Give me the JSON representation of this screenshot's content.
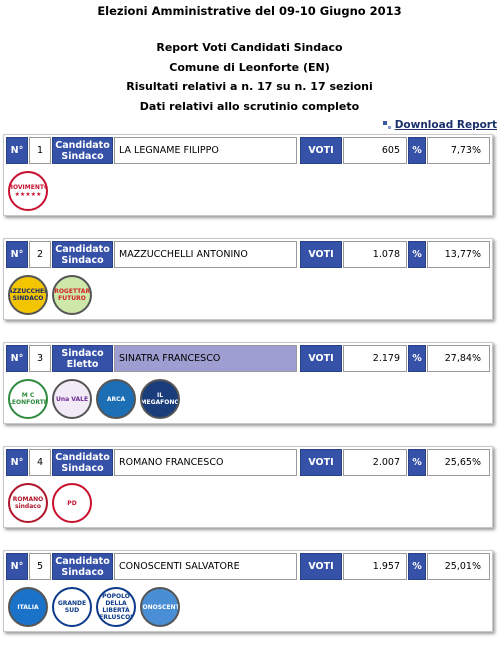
{
  "header": {
    "title": "Elezioni Amministrative del 09-10 Giugno 2013",
    "lines": [
      "Report Voti Candidati Sindaco",
      "Comune di Leonforte (EN)",
      "Risultati relativi a n. 17 su n. 17 sezioni",
      "Dati relativi allo scrutinio completo"
    ]
  },
  "download": {
    "label": "Download Report",
    "icon": "download-icon"
  },
  "labels": {
    "n": "N°",
    "candidate": "Candidato Sindaco",
    "elected": "Sindaco Eletto",
    "votes": "VOTI",
    "pct": "%"
  },
  "candidates": [
    {
      "num": "1",
      "label": "Candidato Sindaco",
      "name": "LA LEGNAME FILIPPO",
      "votes": "605",
      "pct": "7,73%",
      "elected": false,
      "lists": [
        {
          "text": "MOVIMENTO ★★★★★",
          "color": "#c8102e",
          "bg": "#ffffff"
        }
      ]
    },
    {
      "num": "2",
      "label": "Candidato Sindaco",
      "name": "MAZZUCCHELLI ANTONINO",
      "votes": "1.078",
      "pct": "13,77%",
      "elected": false,
      "lists": [
        {
          "text": "MAZZUCCHELLI SINDACO",
          "color": "#1a2a6c",
          "bg": "#f2c500"
        },
        {
          "text": "PROGETTARE FUTURO",
          "color": "#d2232a",
          "bg": "#cde8a8"
        }
      ]
    },
    {
      "num": "3",
      "label": "Sindaco Eletto",
      "name": "SINATRA FRANCESCO",
      "votes": "2.179",
      "pct": "27,84%",
      "elected": true,
      "lists": [
        {
          "text": "M C LEONFORTE",
          "color": "#2e8b3d",
          "bg": "#ffffff"
        },
        {
          "text": "Una VALE",
          "color": "#6a2c91",
          "bg": "#f3eaf7"
        },
        {
          "text": "ARCA",
          "color": "#ffffff",
          "bg": "#1c6fb5"
        },
        {
          "text": "IL MEGAFONO",
          "color": "#ffffff",
          "bg": "#1a3d7c"
        }
      ]
    },
    {
      "num": "4",
      "label": "Candidato Sindaco",
      "name": "ROMANO FRANCESCO",
      "votes": "2.007",
      "pct": "25,65%",
      "elected": false,
      "lists": [
        {
          "text": "ROMANO sindaco",
          "color": "#b0172a",
          "bg": "#ffffff"
        },
        {
          "text": "PD",
          "color": "#c8102e",
          "bg": "#ffffff"
        }
      ]
    },
    {
      "num": "5",
      "label": "Candidato Sindaco",
      "name": "CONOSCENTI SALVATORE",
      "votes": "1.957",
      "pct": "25,01%",
      "elected": false,
      "lists": [
        {
          "text": "ITALIA",
          "color": "#ffffff",
          "bg": "#1b73c9"
        },
        {
          "text": "GRANDE SUD",
          "color": "#0b3a8a",
          "bg": "#ffffff"
        },
        {
          "text": "POPOLO DELLA LIBERTÀ BERLUSCONI",
          "color": "#0b3a8a",
          "bg": "#ffffff"
        },
        {
          "text": "CONOSCENTI",
          "color": "#ffffff",
          "bg": "#4a8fd6"
        }
      ]
    }
  ]
}
